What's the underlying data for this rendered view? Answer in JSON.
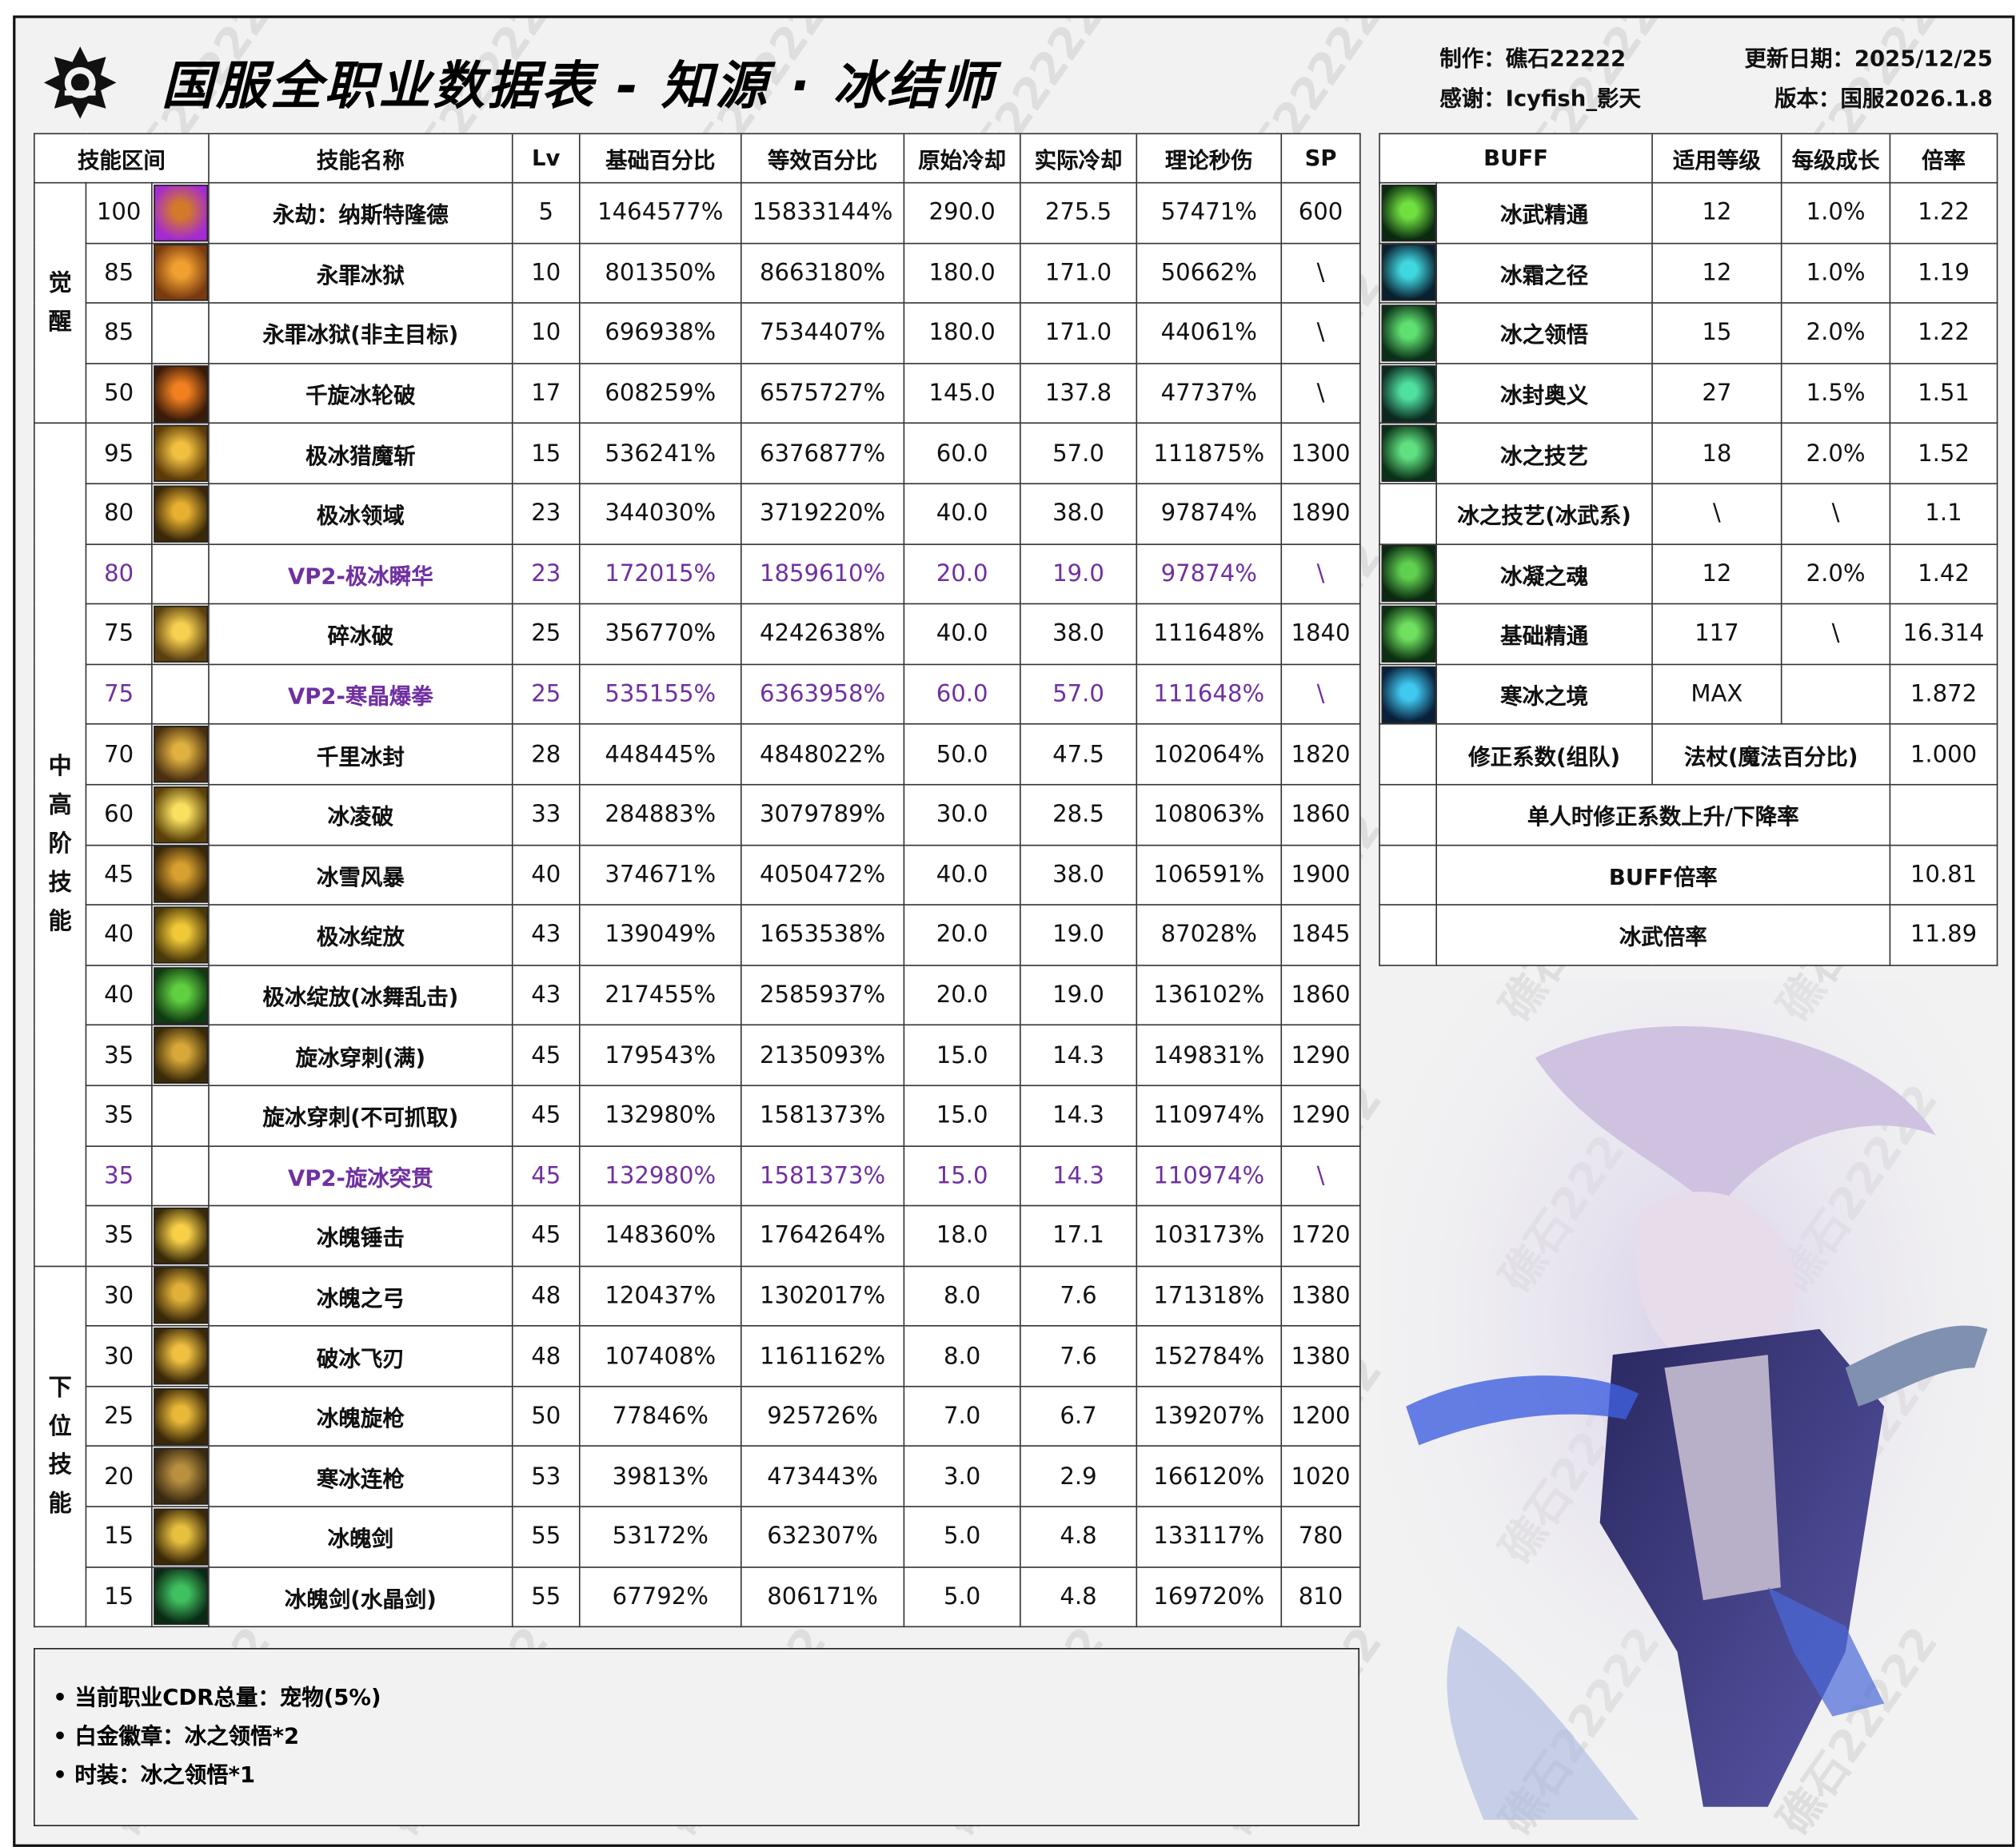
{
  "header": {
    "title": "国服全职业数据表 - 知源 · 冰结师",
    "author": "制作：礁石22222",
    "thanks": "感谢：Icyfish_影天",
    "update": "更新日期：2025/12/25",
    "version": "版本：国服2026.1.8",
    "logo_icon": "game-emblem-icon",
    "watermark": "礁石22222"
  },
  "colors": {
    "vp2": "#7030a0",
    "background": "#f2f2f2",
    "cell": "#ffffff",
    "border": "#333333"
  },
  "skill_table": {
    "headers": [
      "技能区间",
      "技能名称",
      "Lv",
      "基础百分比",
      "等效百分比",
      "原始冷却",
      "实际冷却",
      "理论秒伤",
      "SP"
    ],
    "groups": [
      {
        "label": "觉醒",
        "rows": 4
      },
      {
        "label": "中高阶技能",
        "rows": 14
      },
      {
        "label": "下位技能",
        "rows": 6
      }
    ],
    "rows": [
      {
        "level": "100",
        "name": "永劫：纳斯特隆德",
        "lv": "5",
        "base": "1464577%",
        "equiv": "15833144%",
        "cd": "290.0",
        "real_cd": "275.5",
        "dps": "57471%",
        "sp": "600",
        "icon": [
          "#d27a2a",
          "#a42ad2"
        ]
      },
      {
        "level": "85",
        "name": "永罪冰狱",
        "lv": "10",
        "base": "801350%",
        "equiv": "8663180%",
        "cd": "180.0",
        "real_cd": "171.0",
        "dps": "50662%",
        "sp": "\\",
        "icon": [
          "#f0a030",
          "#7a3a10"
        ]
      },
      {
        "level": "85",
        "name": "永罪冰狱(非主目标)",
        "lv": "10",
        "base": "696938%",
        "equiv": "7534407%",
        "cd": "180.0",
        "real_cd": "171.0",
        "dps": "44061%",
        "sp": "\\",
        "icon": null
      },
      {
        "level": "50",
        "name": "千旋冰轮破",
        "lv": "17",
        "base": "608259%",
        "equiv": "6575727%",
        "cd": "145.0",
        "real_cd": "137.8",
        "dps": "47737%",
        "sp": "\\",
        "icon": [
          "#f08020",
          "#3a1a08"
        ]
      },
      {
        "level": "95",
        "name": "极冰猎魔斩",
        "lv": "15",
        "base": "536241%",
        "equiv": "6376877%",
        "cd": "60.0",
        "real_cd": "57.0",
        "dps": "111875%",
        "sp": "1300",
        "icon": [
          "#f2c040",
          "#5a3a08"
        ]
      },
      {
        "level": "80",
        "name": "极冰领域",
        "lv": "23",
        "base": "344030%",
        "equiv": "3719220%",
        "cd": "40.0",
        "real_cd": "38.0",
        "dps": "97874%",
        "sp": "1890",
        "icon": [
          "#e8b030",
          "#3a2808"
        ]
      },
      {
        "level": "80",
        "name": "VP2-极冰瞬华",
        "lv": "23",
        "base": "172015%",
        "equiv": "1859610%",
        "cd": "20.0",
        "real_cd": "19.0",
        "dps": "97874%",
        "sp": "\\",
        "icon": null,
        "vp": true
      },
      {
        "level": "75",
        "name": "碎冰破",
        "lv": "25",
        "base": "356770%",
        "equiv": "4242638%",
        "cd": "40.0",
        "real_cd": "38.0",
        "dps": "111648%",
        "sp": "1840",
        "icon": [
          "#f8d050",
          "#5a4010"
        ]
      },
      {
        "level": "75",
        "name": "VP2-寒晶爆拳",
        "lv": "25",
        "base": "535155%",
        "equiv": "6363958%",
        "cd": "60.0",
        "real_cd": "57.0",
        "dps": "111648%",
        "sp": "\\",
        "icon": null,
        "vp": true
      },
      {
        "level": "70",
        "name": "千里冰封",
        "lv": "28",
        "base": "448445%",
        "equiv": "4848022%",
        "cd": "50.0",
        "real_cd": "47.5",
        "dps": "102064%",
        "sp": "1820",
        "icon": [
          "#e0b040",
          "#4a3010"
        ]
      },
      {
        "level": "60",
        "name": "冰凌破",
        "lv": "33",
        "base": "284883%",
        "equiv": "3079789%",
        "cd": "30.0",
        "real_cd": "28.5",
        "dps": "108063%",
        "sp": "1860",
        "icon": [
          "#f8e060",
          "#5a4008"
        ]
      },
      {
        "level": "45",
        "name": "冰雪风暴",
        "lv": "40",
        "base": "374671%",
        "equiv": "4050472%",
        "cd": "40.0",
        "real_cd": "38.0",
        "dps": "106591%",
        "sp": "1900",
        "icon": [
          "#d8a030",
          "#3a2808"
        ]
      },
      {
        "level": "40",
        "name": "极冰绽放",
        "lv": "43",
        "base": "139049%",
        "equiv": "1653538%",
        "cd": "20.0",
        "real_cd": "19.0",
        "dps": "87028%",
        "sp": "1845",
        "icon": [
          "#f0c838",
          "#4a3808"
        ]
      },
      {
        "level": "40",
        "name": "极冰绽放(冰舞乱击)",
        "lv": "43",
        "base": "217455%",
        "equiv": "2585937%",
        "cd": "20.0",
        "real_cd": "19.0",
        "dps": "136102%",
        "sp": "1860",
        "icon": [
          "#60d040",
          "#103a10"
        ]
      },
      {
        "level": "35",
        "name": "旋冰穿刺(满)",
        "lv": "45",
        "base": "179543%",
        "equiv": "2135093%",
        "cd": "15.0",
        "real_cd": "14.3",
        "dps": "149831%",
        "sp": "1290",
        "icon": [
          "#d8a838",
          "#3a2a08"
        ]
      },
      {
        "level": "35",
        "name": "旋冰穿刺(不可抓取)",
        "lv": "45",
        "base": "132980%",
        "equiv": "1581373%",
        "cd": "15.0",
        "real_cd": "14.3",
        "dps": "110974%",
        "sp": "1290",
        "icon": null
      },
      {
        "level": "35",
        "name": "VP2-旋冰突贯",
        "lv": "45",
        "base": "132980%",
        "equiv": "1581373%",
        "cd": "15.0",
        "real_cd": "14.3",
        "dps": "110974%",
        "sp": "\\",
        "icon": null,
        "vp": true
      },
      {
        "level": "35",
        "name": "冰魄锤击",
        "lv": "45",
        "base": "148360%",
        "equiv": "1764264%",
        "cd": "18.0",
        "real_cd": "17.1",
        "dps": "103173%",
        "sp": "1720",
        "icon": [
          "#f8d048",
          "#3a2a08"
        ]
      },
      {
        "level": "30",
        "name": "冰魄之弓",
        "lv": "48",
        "base": "120437%",
        "equiv": "1302017%",
        "cd": "8.0",
        "real_cd": "7.6",
        "dps": "171318%",
        "sp": "1380",
        "icon": [
          "#e0b038",
          "#3a2808"
        ]
      },
      {
        "level": "30",
        "name": "破冰飞刃",
        "lv": "48",
        "base": "107408%",
        "equiv": "1161162%",
        "cd": "8.0",
        "real_cd": "7.6",
        "dps": "152784%",
        "sp": "1380",
        "icon": [
          "#f0c040",
          "#3a2808"
        ]
      },
      {
        "level": "25",
        "name": "冰魄旋枪",
        "lv": "50",
        "base": "77846%",
        "equiv": "925726%",
        "cd": "7.0",
        "real_cd": "6.7",
        "dps": "139207%",
        "sp": "1200",
        "icon": [
          "#e8b838",
          "#3a2808"
        ]
      },
      {
        "level": "20",
        "name": "寒冰连枪",
        "lv": "53",
        "base": "39813%",
        "equiv": "473443%",
        "cd": "3.0",
        "real_cd": "2.9",
        "dps": "166120%",
        "sp": "1020",
        "icon": [
          "#b89040",
          "#3a2a10"
        ]
      },
      {
        "level": "15",
        "name": "冰魄剑",
        "lv": "55",
        "base": "53172%",
        "equiv": "632307%",
        "cd": "5.0",
        "real_cd": "4.8",
        "dps": "133117%",
        "sp": "780",
        "icon": [
          "#e8c040",
          "#3a2808"
        ]
      },
      {
        "level": "15",
        "name": "冰魄剑(水晶剑)",
        "lv": "55",
        "base": "67792%",
        "equiv": "806171%",
        "cd": "5.0",
        "real_cd": "4.8",
        "dps": "169720%",
        "sp": "810",
        "icon": [
          "#40c060",
          "#0a2a14"
        ]
      }
    ]
  },
  "buff_table": {
    "headers": [
      "BUFF",
      "适用等级",
      "每级成长",
      "倍率"
    ],
    "rows": [
      {
        "name": "冰武精通",
        "level": "12",
        "growth": "1.0%",
        "rate": "1.22",
        "icon": [
          "#70e040",
          "#0a2a10"
        ]
      },
      {
        "name": "冰霜之径",
        "level": "12",
        "growth": "1.0%",
        "rate": "1.19",
        "icon": [
          "#40d8e0",
          "#0a2030"
        ]
      },
      {
        "name": "冰之领悟",
        "level": "15",
        "growth": "2.0%",
        "rate": "1.22",
        "icon": [
          "#60e070",
          "#0a3018"
        ]
      },
      {
        "name": "冰封奥义",
        "level": "27",
        "growth": "1.5%",
        "rate": "1.51",
        "icon": [
          "#50e0a0",
          "#0a2a20"
        ]
      },
      {
        "name": "冰之技艺",
        "level": "18",
        "growth": "2.0%",
        "rate": "1.52",
        "icon": [
          "#60e080",
          "#0a3018"
        ]
      },
      {
        "name": "冰之技艺(冰武系)",
        "level": "\\",
        "growth": "\\",
        "rate": "1.1",
        "icon": null
      },
      {
        "name": "冰凝之魂",
        "level": "12",
        "growth": "2.0%",
        "rate": "1.42",
        "icon": [
          "#60d050",
          "#0a2a10"
        ]
      },
      {
        "name": "基础精通",
        "level": "117",
        "growth": "\\",
        "rate": "16.314",
        "icon": [
          "#70e060",
          "#0a3010"
        ]
      },
      {
        "name": "寒冰之境",
        "level": "MAX",
        "growth": "",
        "rate": "1.872",
        "icon": [
          "#40c8f0",
          "#08203a"
        ]
      }
    ],
    "correction": {
      "label": "修正系数(组队)",
      "type": "法杖(魔法百分比)",
      "value": "1.000"
    },
    "solo": {
      "label": "单人时修正系数上升/下降率",
      "value": ""
    },
    "buff_rate": {
      "label": "BUFF倍率",
      "value": "10.81"
    },
    "weapon_rate": {
      "label": "冰武倍率",
      "value": "11.89"
    }
  },
  "notes": [
    "• 当前职业CDR总量：宠物(5%)",
    "• 白金徽章：冰之领悟*2",
    "• 时装：冰之领悟*1"
  ],
  "artwork": {
    "icon": "ice-mage-character-illustration"
  }
}
